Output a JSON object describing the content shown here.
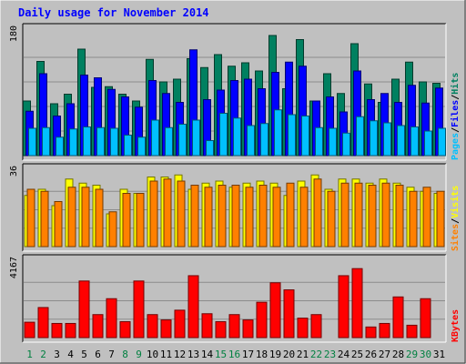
{
  "chart_data": {
    "title": "Daily usage for November 2014",
    "type": "bar",
    "x": [
      "1",
      "2",
      "3",
      "4",
      "5",
      "6",
      "7",
      "8",
      "9",
      "10",
      "11",
      "12",
      "13",
      "14",
      "15",
      "16",
      "17",
      "18",
      "19",
      "20",
      "21",
      "22",
      "23",
      "24",
      "25",
      "26",
      "27",
      "28",
      "29",
      "30",
      "31"
    ],
    "weekend_days": [
      "1",
      "2",
      "8",
      "9",
      "15",
      "16",
      "22",
      "23",
      "29",
      "30"
    ],
    "panels": [
      {
        "name": "hits-files-pages",
        "ymax_label": "180",
        "ylim": [
          0,
          180
        ],
        "legend": [
          "Pages",
          "/",
          "Files",
          "/",
          "Hits"
        ],
        "series": [
          {
            "name": "Hits",
            "color": "#008060",
            "values": [
              80,
              138,
              76,
              90,
              156,
              100,
              101,
              90,
              80,
              141,
              108,
              112,
              142,
              129,
              148,
              131,
              136,
              124,
              176,
              98,
              170,
              80,
              120,
              91,
              164,
              105,
              78,
              112,
              137,
              108,
              106
            ]
          },
          {
            "name": "Files",
            "color": "#0000ff",
            "values": [
              65,
              120,
              58,
              76,
              118,
              114,
              97,
              86,
              71,
              110,
              91,
              78,
              155,
              82,
              96,
              110,
              112,
              98,
              122,
              137,
              131,
              80,
              86,
              64,
              124,
              82,
              91,
              78,
              103,
              77,
              99
            ]
          },
          {
            "name": "Pages",
            "color": "#00c0ff",
            "values": [
              40,
              41,
              27,
              39,
              42,
              41,
              40,
              30,
              27,
              52,
              41,
              46,
              52,
              22,
              62,
              55,
              44,
              47,
              67,
              60,
              58,
              41,
              40,
              33,
              57,
              51,
              48,
              44,
              42,
              36,
              40
            ]
          }
        ]
      },
      {
        "name": "visits-sites",
        "ymax_label": "36",
        "ylim": [
          0,
          36
        ],
        "legend": [
          "Sites",
          "/",
          "Visits"
        ],
        "series": [
          {
            "name": "Visits",
            "color": "#ffff00",
            "values": [
              25,
              28,
              20,
              33,
              31,
              30,
              16,
              28,
              26,
              34,
              34,
              35,
              28,
              31,
              32,
              29,
              31,
              32,
              31,
              25,
              32,
              35,
              28,
              33,
              33,
              31,
              33,
              31,
              29,
              27,
              26
            ]
          },
          {
            "name": "Sites",
            "color": "#ff8000",
            "values": [
              28,
              27,
              22,
              29,
              29,
              28,
              17,
              26,
              26,
              32,
              33,
              32,
              30,
              29,
              30,
              30,
              29,
              30,
              29,
              31,
              29,
              33,
              27,
              31,
              31,
              30,
              31,
              30,
              27,
              29,
              27
            ]
          }
        ]
      },
      {
        "name": "kbytes",
        "ymax_label": "4167",
        "ylim": [
          0,
          4167
        ],
        "legend": [
          "KBytes"
        ],
        "series": [
          {
            "name": "KBytes",
            "color": "#ff0000",
            "values": [
              870,
              1700,
              800,
              800,
              3200,
              1300,
              2200,
              900,
              3200,
              1300,
              1000,
              1550,
              3500,
              1350,
              900,
              1300,
              1000,
              2000,
              3100,
              2700,
              1100,
              1300,
              0,
              3500,
              3900,
              600,
              800,
              2300,
              700,
              2200,
              0
            ]
          }
        ]
      }
    ]
  },
  "colors": {
    "background": "#c0c0c0",
    "panel_background": "#c0c0c0",
    "gridline": "#8c8c8c",
    "title": "#0000ff",
    "weekday_label": "#000000",
    "weekend_label": "#008040"
  }
}
